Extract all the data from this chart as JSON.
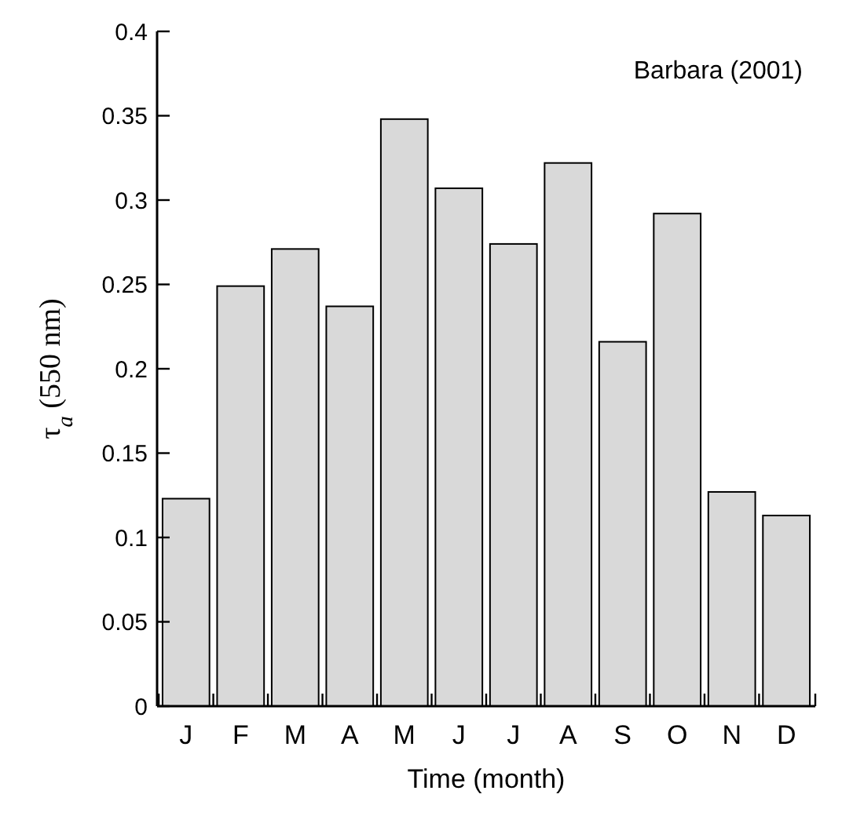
{
  "chart_data": {
    "type": "bar",
    "xlabel": "Time (month)",
    "ylabel": "τ$_{a}$ (550 nm)",
    "annotations": [
      "Barbara (2001)"
    ],
    "categories": [
      "J",
      "F",
      "M",
      "A",
      "M",
      "J",
      "J",
      "A",
      "S",
      "O",
      "N",
      "D"
    ],
    "series": [
      {
        "color": "#d9d9d9",
        "values": [
          0.123,
          0.249,
          0.271,
          0.237,
          0.348,
          0.307,
          0.274,
          0.322,
          0.216,
          0.292,
          0.127,
          0.113
        ]
      }
    ],
    "ylim": [
      0,
      0.4
    ],
    "yticks": [
      0,
      0.05,
      0.1,
      0.15,
      0.2,
      0.25,
      0.3,
      0.35,
      0.4
    ],
    "grid": false
  }
}
